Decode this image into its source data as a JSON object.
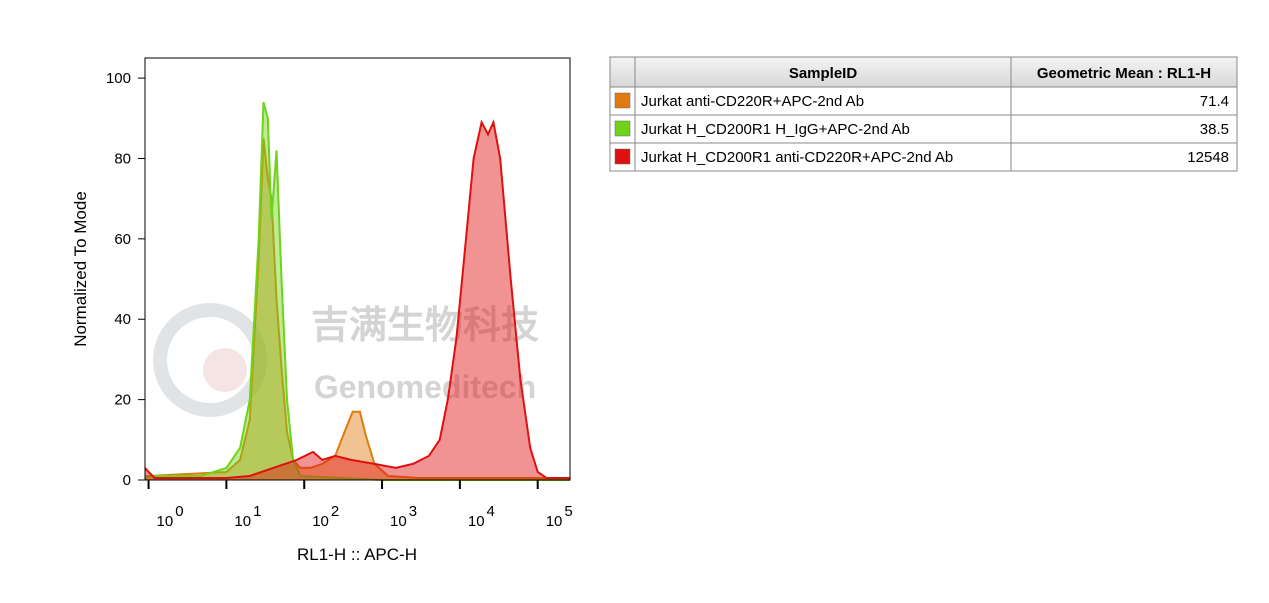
{
  "chart_data": {
    "type": "histogram-overlay",
    "xlabel": "RL1-H :: APC-H",
    "ylabel": "Normalized To Mode",
    "xscale": "log",
    "xlim": [
      0.9,
      260000
    ],
    "xticks": [
      {
        "value": 1,
        "label": "10^0"
      },
      {
        "value": 10,
        "label": "10^1"
      },
      {
        "value": 100,
        "label": "10^2"
      },
      {
        "value": 1000,
        "label": "10^3"
      },
      {
        "value": 10000,
        "label": "10^4"
      },
      {
        "value": 100000,
        "label": "10^5"
      }
    ],
    "ylim": [
      0,
      105
    ],
    "yticks": [
      0,
      20,
      40,
      60,
      80,
      100
    ],
    "watermark": [
      "吉满生物科技",
      "Genomeditech"
    ],
    "legend_title": "SampleID",
    "stat_title": "Geometric Mean : RL1-H",
    "series": [
      {
        "name": "Jurkat anti-CD220R+APC-2nd Ab",
        "color": "#e07b10",
        "geometric_mean": 71.4,
        "x": [
          0.9,
          1,
          10,
          15,
          20,
          26,
          30,
          34,
          38,
          44,
          51,
          60,
          72,
          89,
          120,
          170,
          250,
          330,
          420,
          520,
          620,
          800,
          1200,
          3000,
          260000
        ],
        "values": [
          0.5,
          1,
          2,
          5,
          15,
          55,
          85,
          75,
          70,
          45,
          28,
          12,
          5,
          3,
          3,
          4,
          6,
          12,
          17,
          17,
          11,
          4,
          1,
          0.5,
          0.5
        ]
      },
      {
        "name": "Jurkat H_CD200R1 H_IgG+APC-2nd Ab",
        "color": "#6ed319",
        "geometric_mean": 38.5,
        "x": [
          0.9,
          4.7,
          10,
          15,
          20,
          26,
          30,
          34,
          38,
          44,
          51,
          60,
          72,
          89,
          1000,
          260000
        ],
        "values": [
          1,
          1,
          3,
          8,
          20,
          60,
          94,
          90,
          65,
          82,
          50,
          20,
          5,
          1,
          0,
          0
        ]
      },
      {
        "name": "Jurkat H_CD200R1 anti-CD220R+APC-2nd Ab",
        "color": "#e01010",
        "geometric_mean": 12548,
        "x": [
          0.9,
          1,
          1.2,
          10,
          20,
          40,
          80,
          130,
          170,
          250,
          400,
          800,
          1500,
          2500,
          4000,
          5500,
          7000,
          9000,
          12000,
          15000,
          19000,
          23000,
          27000,
          33000,
          45000,
          60000,
          80000,
          100000,
          130000,
          260000
        ],
        "values": [
          3,
          2,
          0.5,
          0.5,
          1,
          3,
          5,
          7,
          5,
          6,
          5,
          4,
          3,
          4,
          6,
          10,
          20,
          35,
          60,
          80,
          89,
          86,
          89,
          80,
          50,
          25,
          8,
          2,
          0.5,
          0.5
        ]
      }
    ]
  }
}
